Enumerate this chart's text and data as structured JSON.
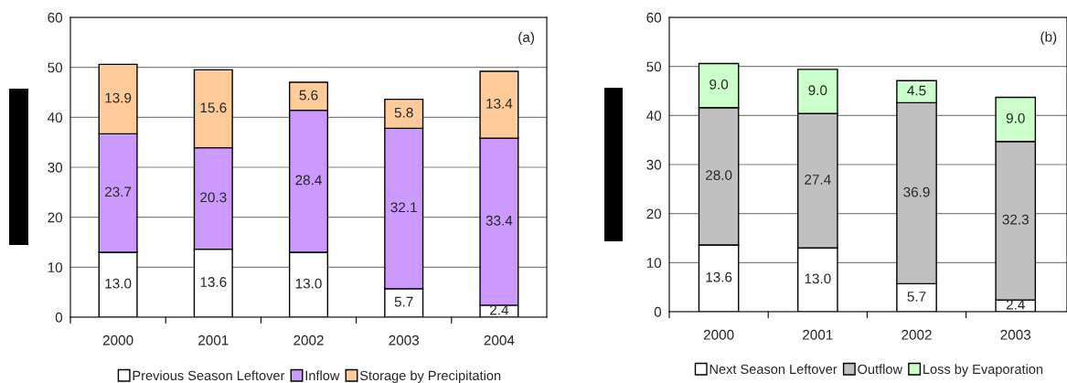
{
  "chart_data": [
    {
      "type": "bar",
      "stacked": true,
      "categories": [
        "2000",
        "2001",
        "2002",
        "2003",
        "2004"
      ],
      "ylim": [
        0,
        60
      ],
      "yticks": [
        0,
        10,
        20,
        30,
        40,
        50,
        60
      ],
      "grid": "y",
      "legend": "bottom",
      "annotations": [
        "(a)"
      ],
      "series": [
        {
          "name": "Previous Season Leftover",
          "color": "#ffffff",
          "values": [
            13.0,
            13.6,
            13.0,
            5.7,
            2.4
          ],
          "value_labels": [
            "13.0",
            "13.6",
            "13.0",
            "5.7",
            "2.4"
          ]
        },
        {
          "name": "Inflow",
          "color": "#cc99ff",
          "values": [
            23.7,
            20.3,
            28.4,
            32.1,
            33.4
          ],
          "value_labels": [
            "23.7",
            "20.3",
            "28.4",
            "32.1",
            "33.4"
          ]
        },
        {
          "name": "Storage by Precipitation",
          "color": "#ffcc99",
          "values": [
            13.9,
            15.6,
            5.6,
            5.8,
            13.4
          ],
          "value_labels": [
            "13.9",
            "15.6",
            "5.6",
            "5.8",
            "13.4"
          ]
        }
      ]
    },
    {
      "type": "bar",
      "stacked": true,
      "categories": [
        "2000",
        "2001",
        "2002",
        "2003"
      ],
      "ylim": [
        0,
        60
      ],
      "yticks": [
        0,
        10,
        20,
        30,
        40,
        50,
        60
      ],
      "grid": "y",
      "legend": "bottom",
      "annotations": [
        "(b)"
      ],
      "series": [
        {
          "name": "Next Season Leftover",
          "color": "#ffffff",
          "values": [
            13.6,
            13.0,
            5.7,
            2.4
          ],
          "value_labels": [
            "13.6",
            "13.0",
            "5.7",
            "2.4"
          ]
        },
        {
          "name": "Outflow",
          "color": "#c0c0c0",
          "values": [
            28.0,
            27.4,
            36.9,
            32.3
          ],
          "value_labels": [
            "28.0",
            "27.4",
            "36.9",
            "32.3"
          ]
        },
        {
          "name": "Loss by Evaporation",
          "color": "#ccffcc",
          "values": [
            9.0,
            9.0,
            4.5,
            9.0
          ],
          "value_labels": [
            "9.0",
            "9.0",
            "4.5",
            "9.0"
          ]
        }
      ]
    }
  ]
}
